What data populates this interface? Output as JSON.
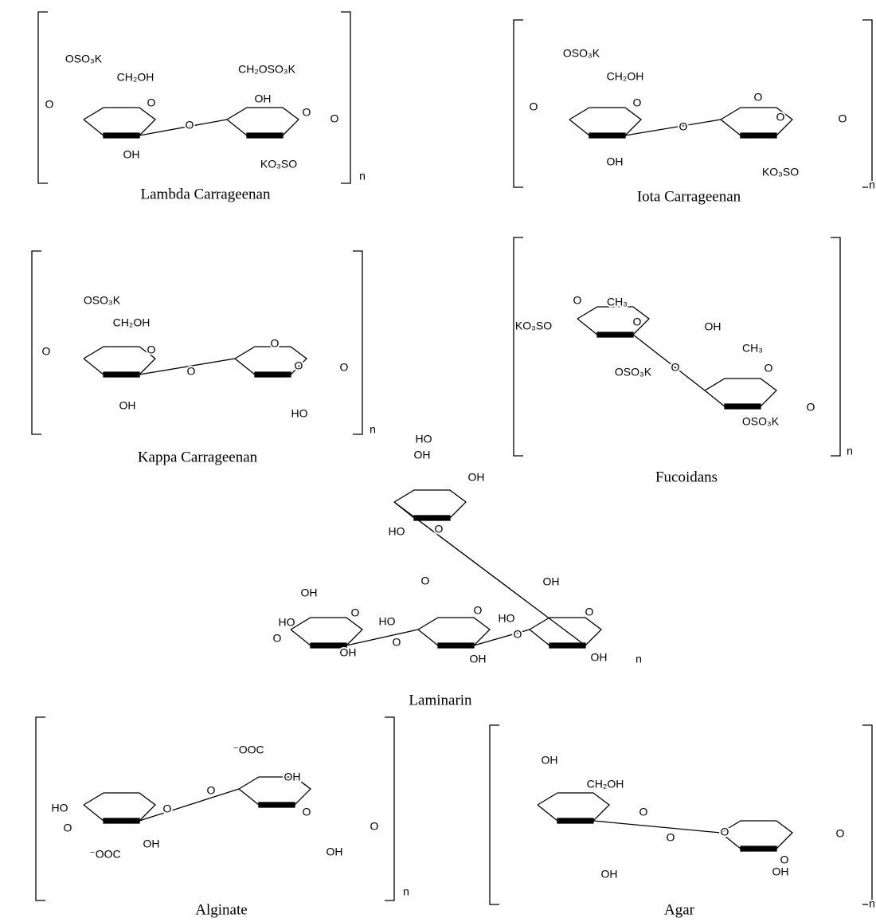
{
  "structures": [
    {
      "name": "Lambda Carrageenan",
      "labels": [
        "OSO₃K",
        "CH₂OH",
        "O",
        "OH",
        "O",
        "CH₂OSO₃K",
        "OH",
        "O",
        "KO₃SO",
        "O",
        "O",
        "n"
      ]
    },
    {
      "name": "Iota Carrageenan",
      "labels": [
        "OSO₃K",
        "CH₂OH",
        "O",
        "OH",
        "O",
        "O",
        "O",
        "KO₃SO",
        "O",
        "O",
        "n"
      ]
    },
    {
      "name": "Kappa Carrageenan",
      "labels": [
        "OSO₃K",
        "CH₂OH",
        "O",
        "OH",
        "O",
        "O",
        "O",
        "HO",
        "O",
        "O",
        "n"
      ]
    },
    {
      "name": "Fucoidans",
      "labels": [
        "O",
        "CH₃",
        "O",
        "KO₃SO",
        "OSO₃K",
        "O",
        "OH",
        "CH₃",
        "O",
        "OSO₃K",
        "O",
        "n"
      ]
    },
    {
      "name": "Laminarin",
      "labels": [
        "HO",
        "OH",
        "OH",
        "HO",
        "O",
        "O",
        "OH",
        "HO",
        "O",
        "O",
        "OH",
        "O",
        "HO",
        "O",
        "OH",
        "O",
        "OH",
        "HO",
        "O",
        "OH",
        "n"
      ]
    },
    {
      "name": "Alginate",
      "labels": [
        "HO",
        "O",
        "O",
        "⁻OOC",
        "OH",
        "O",
        "⁻OOC",
        "OH",
        "O",
        "OH",
        "O",
        "n"
      ]
    },
    {
      "name": "Agar",
      "labels": [
        "OH",
        "CH₂OH",
        "O",
        "OH",
        "O",
        "O",
        "O",
        "OH",
        "O",
        "n"
      ]
    }
  ]
}
